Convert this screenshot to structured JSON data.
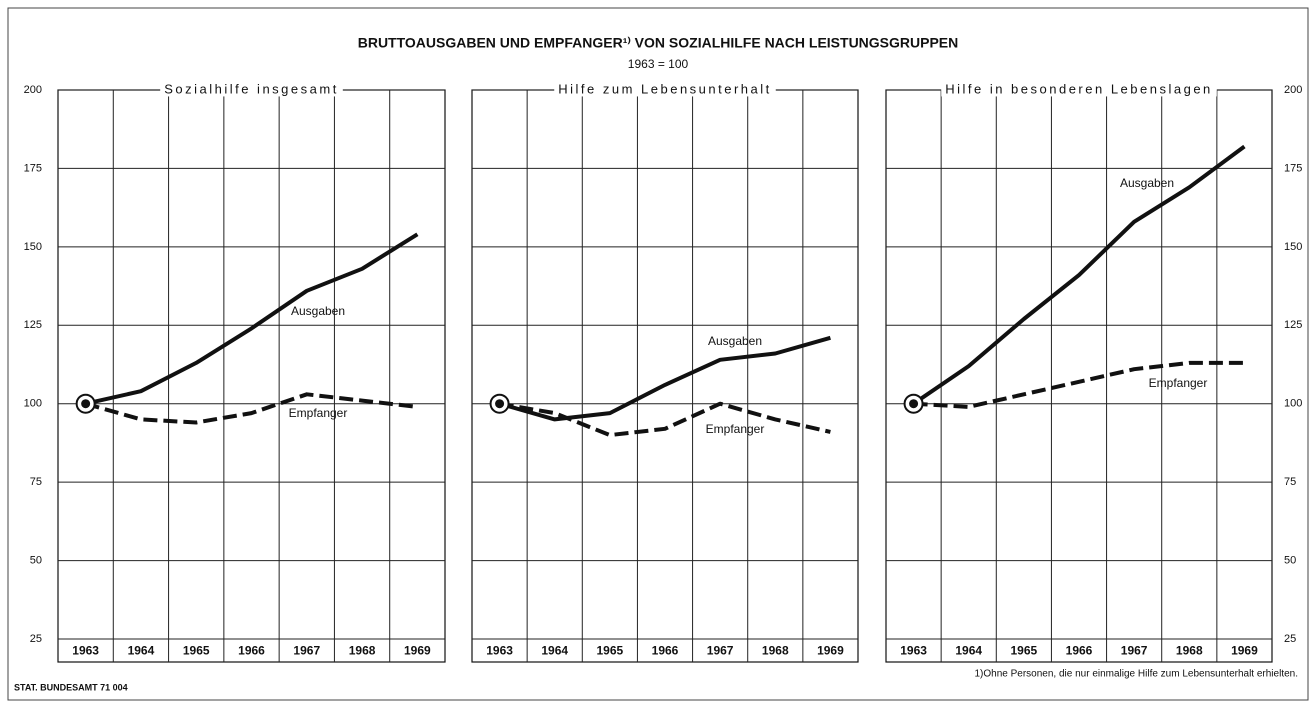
{
  "title": "BRUTTOAUSGABEN UND EMPFANGER¹⁾ VON SOZIALHILFE NACH LEISTUNGSGRUPPEN",
  "subtitle": "1963 = 100",
  "source": "STAT. BUNDESAMT 71 004",
  "footnote": "1)Ohne Personen, die nur einmalige Hilfe zum Lebensunterhalt erhielten.",
  "chart_data": [
    {
      "type": "line",
      "title": "Sozialhilfe insgesamt",
      "categories": [
        "1963",
        "1964",
        "1965",
        "1966",
        "1967",
        "1968",
        "1969"
      ],
      "series": [
        {
          "name": "Ausgaben",
          "color": "#111111",
          "dashed": false,
          "values": [
            100,
            104,
            113,
            124,
            136,
            143,
            154
          ]
        },
        {
          "name": "Empfanger",
          "color": "#111111",
          "dashed": true,
          "values": [
            100,
            95,
            94,
            97,
            103,
            101,
            99
          ]
        }
      ],
      "ylim": [
        25,
        200
      ],
      "yticks": [
        25,
        50,
        75,
        100,
        125,
        150,
        175,
        200
      ],
      "grid": true,
      "ytick_labels_side": "left"
    },
    {
      "type": "line",
      "title": "Hilfe zum Lebensunterhalt",
      "categories": [
        "1963",
        "1964",
        "1965",
        "1966",
        "1967",
        "1968",
        "1969"
      ],
      "series": [
        {
          "name": "Ausgaben",
          "color": "#111111",
          "dashed": false,
          "values": [
            100,
            95,
            97,
            106,
            114,
            116,
            121
          ]
        },
        {
          "name": "Empfanger",
          "color": "#111111",
          "dashed": true,
          "values": [
            100,
            97,
            90,
            92,
            100,
            95,
            91
          ]
        }
      ],
      "ylim": [
        25,
        200
      ],
      "yticks": [
        25,
        50,
        75,
        100,
        125,
        150,
        175,
        200
      ],
      "grid": true
    },
    {
      "type": "line",
      "title": "Hilfe in besonderen Lebenslagen",
      "categories": [
        "1963",
        "1964",
        "1965",
        "1966",
        "1967",
        "1968",
        "1969"
      ],
      "series": [
        {
          "name": "Ausgaben",
          "color": "#111111",
          "dashed": false,
          "values": [
            100,
            112,
            127,
            141,
            158,
            169,
            182
          ]
        },
        {
          "name": "Empfanger",
          "color": "#111111",
          "dashed": true,
          "values": [
            100,
            99,
            103,
            107,
            111,
            113,
            113
          ]
        }
      ],
      "ylim": [
        25,
        200
      ],
      "yticks": [
        25,
        50,
        75,
        100,
        125,
        150,
        175,
        200
      ],
      "grid": true,
      "ytick_labels_side": "right"
    }
  ]
}
